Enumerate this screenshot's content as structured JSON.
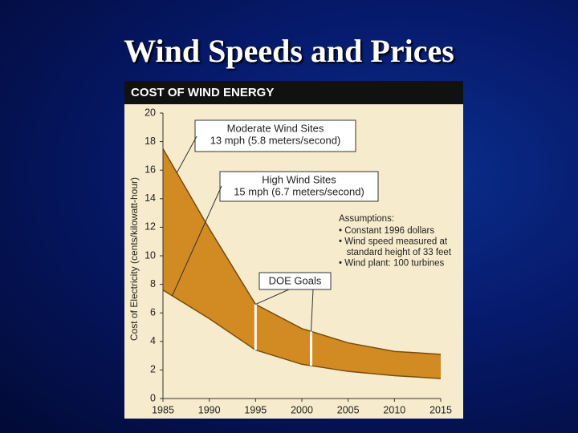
{
  "slide_title": "Wind Speeds and Prices",
  "chart_data": {
    "type": "band",
    "title": "COST OF WIND ENERGY",
    "ylabel": "Cost of Electricity (cents/kilowatt-hour)",
    "x": [
      1985,
      1990,
      1995,
      2000,
      2005,
      2010,
      2015
    ],
    "series": [
      {
        "name": "Moderate Wind Sites",
        "detail": "13 mph (5.8 meters/second)",
        "color": "#7a4d0c",
        "values": [
          17.5,
          11.9,
          6.6,
          4.9,
          3.9,
          3.3,
          3.1
        ]
      },
      {
        "name": "High Wind Sites",
        "detail": "15 mph (6.7 meters/second)",
        "color": "#7a4d0c",
        "values": [
          7.6,
          5.6,
          3.4,
          2.4,
          1.9,
          1.6,
          1.4
        ]
      }
    ],
    "fill_color": "#d28a22",
    "goals": {
      "label": "DOE Goals",
      "x": [
        1995,
        2001
      ]
    },
    "assumptions": {
      "title": "Assumptions:",
      "items": [
        "• Constant 1996 dollars",
        "• Wind speed measured at",
        "   standard height of 33 feet",
        "• Wind plant: 100 turbines"
      ]
    },
    "xlim": [
      1985,
      2015
    ],
    "xticks": [
      1985,
      1990,
      1995,
      2000,
      2005,
      2010,
      2015
    ],
    "ylim": [
      0,
      20
    ],
    "yticks": [
      0,
      2,
      4,
      6,
      8,
      10,
      12,
      14,
      16,
      18,
      20
    ]
  }
}
